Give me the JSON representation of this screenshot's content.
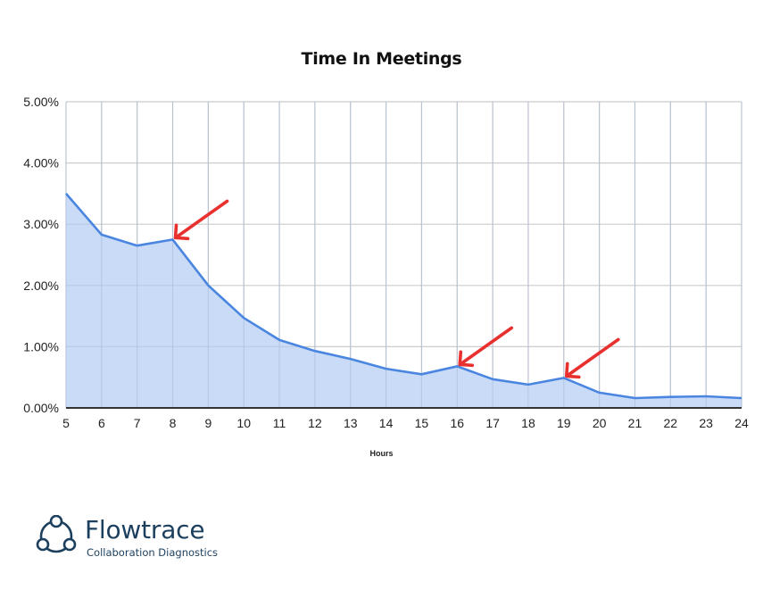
{
  "chart_data": {
    "type": "area",
    "title": "Time In Meetings",
    "xlabel": "Hours",
    "ylabel": "",
    "x": [
      5,
      6,
      7,
      8,
      9,
      10,
      11,
      12,
      13,
      14,
      15,
      16,
      17,
      18,
      19,
      20,
      21,
      22,
      23,
      24
    ],
    "series": [
      {
        "name": "Time In Meetings",
        "values": [
          3.5,
          2.83,
          2.65,
          2.75,
          2.0,
          1.47,
          1.11,
          0.93,
          0.8,
          0.64,
          0.55,
          0.68,
          0.47,
          0.38,
          0.49,
          0.25,
          0.16,
          0.18,
          0.19,
          0.16
        ],
        "unit": "%",
        "line_color": "#4a86e0",
        "fill_color": "#c6d9f7"
      }
    ],
    "y_ticks": [
      "0.00%",
      "1.00%",
      "2.00%",
      "3.00%",
      "4.00%",
      "5.00%"
    ],
    "x_ticks": [
      "5",
      "6",
      "7",
      "8",
      "9",
      "10",
      "11",
      "12",
      "13",
      "14",
      "15",
      "16",
      "17",
      "18",
      "19",
      "20",
      "21",
      "22",
      "23",
      "24"
    ],
    "ylim": [
      0,
      5
    ],
    "xlim": [
      5,
      24
    ],
    "grid": true,
    "legend": null,
    "annotations": [
      {
        "type": "arrow",
        "points_to_x": 8,
        "color": "#e8312f"
      },
      {
        "type": "arrow",
        "points_to_x": 16,
        "color": "#e8312f"
      },
      {
        "type": "arrow",
        "points_to_x": 19,
        "color": "#e8312f"
      }
    ]
  },
  "branding": {
    "name": "Flowtrace",
    "tagline": "Collaboration Diagnostics",
    "color": "#1c3f5e"
  }
}
